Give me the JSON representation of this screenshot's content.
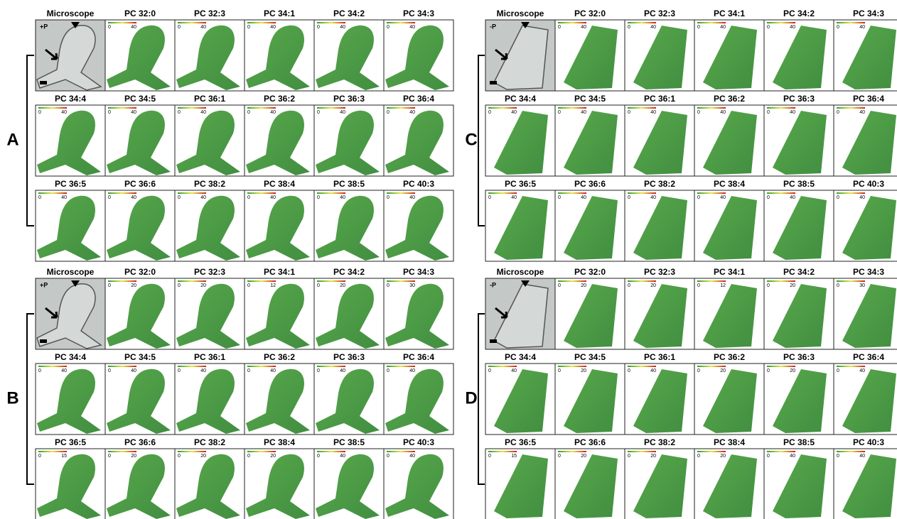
{
  "panels": [
    {
      "label": "A",
      "condition": "+P",
      "tiles": [
        {
          "title": "Microscope"
        },
        {
          "title": "PC 32:0",
          "scale_min": 0,
          "scale_max": 40
        },
        {
          "title": "PC 32:3",
          "scale_min": 0,
          "scale_max": 40
        },
        {
          "title": "PC 34:1",
          "scale_min": 0,
          "scale_max": 40
        },
        {
          "title": "PC 34:2",
          "scale_min": 0,
          "scale_max": 40
        },
        {
          "title": "PC 34:3",
          "scale_min": 0,
          "scale_max": 40
        },
        {
          "title": "PC 34:4",
          "scale_min": 0,
          "scale_max": 40
        },
        {
          "title": "PC 34:5",
          "scale_min": 0,
          "scale_max": 40
        },
        {
          "title": "PC 36:1",
          "scale_min": 0,
          "scale_max": 40
        },
        {
          "title": "PC 36:2",
          "scale_min": 0,
          "scale_max": 40
        },
        {
          "title": "PC 36:3",
          "scale_min": 0,
          "scale_max": 40
        },
        {
          "title": "PC 36:4",
          "scale_min": 0,
          "scale_max": 40
        },
        {
          "title": "PC 36:5",
          "scale_min": 0,
          "scale_max": 40
        },
        {
          "title": "PC 36:6",
          "scale_min": 0,
          "scale_max": 40
        },
        {
          "title": "PC 38:2",
          "scale_min": 0,
          "scale_max": 40
        },
        {
          "title": "PC 38:4",
          "scale_min": 0,
          "scale_max": 40
        },
        {
          "title": "PC 38:5",
          "scale_min": 0,
          "scale_max": 40
        },
        {
          "title": "PC 40:3",
          "scale_min": 0,
          "scale_max": 40
        }
      ]
    },
    {
      "label": "B",
      "condition": "+P",
      "tiles": [
        {
          "title": "Microscope"
        },
        {
          "title": "PC 32:0",
          "scale_min": 0,
          "scale_max": 20
        },
        {
          "title": "PC 32:3",
          "scale_min": 0,
          "scale_max": 20
        },
        {
          "title": "PC 34:1",
          "scale_min": 0,
          "scale_max": 12
        },
        {
          "title": "PC 34:2",
          "scale_min": 0,
          "scale_max": 20
        },
        {
          "title": "PC 34:3",
          "scale_min": 0,
          "scale_max": 30
        },
        {
          "title": "PC 34:4",
          "scale_min": 0,
          "scale_max": 40
        },
        {
          "title": "PC 34:5",
          "scale_min": 0,
          "scale_max": 40
        },
        {
          "title": "PC 36:1",
          "scale_min": 0,
          "scale_max": 40
        },
        {
          "title": "PC 36:2",
          "scale_min": 0,
          "scale_max": 40
        },
        {
          "title": "PC 36:3",
          "scale_min": 0,
          "scale_max": 40
        },
        {
          "title": "PC 36:4",
          "scale_min": 0,
          "scale_max": 40
        },
        {
          "title": "PC 36:5",
          "scale_min": 0,
          "scale_max": 15
        },
        {
          "title": "PC 36:6",
          "scale_min": 0,
          "scale_max": 20
        },
        {
          "title": "PC 38:2",
          "scale_min": 0,
          "scale_max": 20
        },
        {
          "title": "PC 38:4",
          "scale_min": 0,
          "scale_max": 20
        },
        {
          "title": "PC 38:5",
          "scale_min": 0,
          "scale_max": 40
        },
        {
          "title": "PC 40:3",
          "scale_min": 0,
          "scale_max": 40
        }
      ]
    },
    {
      "label": "C",
      "condition": "-P",
      "tiles": [
        {
          "title": "Microscope"
        },
        {
          "title": "PC 32:0",
          "scale_min": 0,
          "scale_max": 40
        },
        {
          "title": "PC 32:3",
          "scale_min": 0,
          "scale_max": 40
        },
        {
          "title": "PC 34:1",
          "scale_min": 0,
          "scale_max": 40
        },
        {
          "title": "PC 34:2",
          "scale_min": 0,
          "scale_max": 40
        },
        {
          "title": "PC 34:3",
          "scale_min": 0,
          "scale_max": 40
        },
        {
          "title": "PC 34:4",
          "scale_min": 0,
          "scale_max": 40
        },
        {
          "title": "PC 34:5",
          "scale_min": 0,
          "scale_max": 40
        },
        {
          "title": "PC 36:1",
          "scale_min": 0,
          "scale_max": 40
        },
        {
          "title": "PC 36:2",
          "scale_min": 0,
          "scale_max": 40
        },
        {
          "title": "PC 36:3",
          "scale_min": 0,
          "scale_max": 40
        },
        {
          "title": "PC 36:4",
          "scale_min": 0,
          "scale_max": 40
        },
        {
          "title": "PC 36:5",
          "scale_min": 0,
          "scale_max": 40
        },
        {
          "title": "PC 36:6",
          "scale_min": 0,
          "scale_max": 40
        },
        {
          "title": "PC 38:2",
          "scale_min": 0,
          "scale_max": 40
        },
        {
          "title": "PC 38:4",
          "scale_min": 0,
          "scale_max": 40
        },
        {
          "title": "PC 38:5",
          "scale_min": 0,
          "scale_max": 40
        },
        {
          "title": "PC 40:3",
          "scale_min": 0,
          "scale_max": 40
        }
      ]
    },
    {
      "label": "D",
      "condition": "-P",
      "tiles": [
        {
          "title": "Microscope"
        },
        {
          "title": "PC 32:0",
          "scale_min": 0,
          "scale_max": 20
        },
        {
          "title": "PC 32:3",
          "scale_min": 0,
          "scale_max": 20
        },
        {
          "title": "PC 34:1",
          "scale_min": 0,
          "scale_max": 12
        },
        {
          "title": "PC 34:2",
          "scale_min": 0,
          "scale_max": 20
        },
        {
          "title": "PC 34:3",
          "scale_min": 0,
          "scale_max": 30
        },
        {
          "title": "PC 34:4",
          "scale_min": 0,
          "scale_max": 40
        },
        {
          "title": "PC 34:5",
          "scale_min": 0,
          "scale_max": 20
        },
        {
          "title": "PC 36:1",
          "scale_min": 0,
          "scale_max": 40
        },
        {
          "title": "PC 36:2",
          "scale_min": 0,
          "scale_max": 20
        },
        {
          "title": "PC 36:3",
          "scale_min": 0,
          "scale_max": 20
        },
        {
          "title": "PC 36:4",
          "scale_min": 0,
          "scale_max": 40
        },
        {
          "title": "PC 36:5",
          "scale_min": 0,
          "scale_max": 15
        },
        {
          "title": "PC 36:6",
          "scale_min": 0,
          "scale_max": 20
        },
        {
          "title": "PC 38:2",
          "scale_min": 0,
          "scale_max": 20
        },
        {
          "title": "PC 38:4",
          "scale_min": 0,
          "scale_max": 20
        },
        {
          "title": "PC 38:5",
          "scale_min": 0,
          "scale_max": 40
        },
        {
          "title": "PC 40:3",
          "scale_min": 0,
          "scale_max": 40
        }
      ]
    }
  ]
}
